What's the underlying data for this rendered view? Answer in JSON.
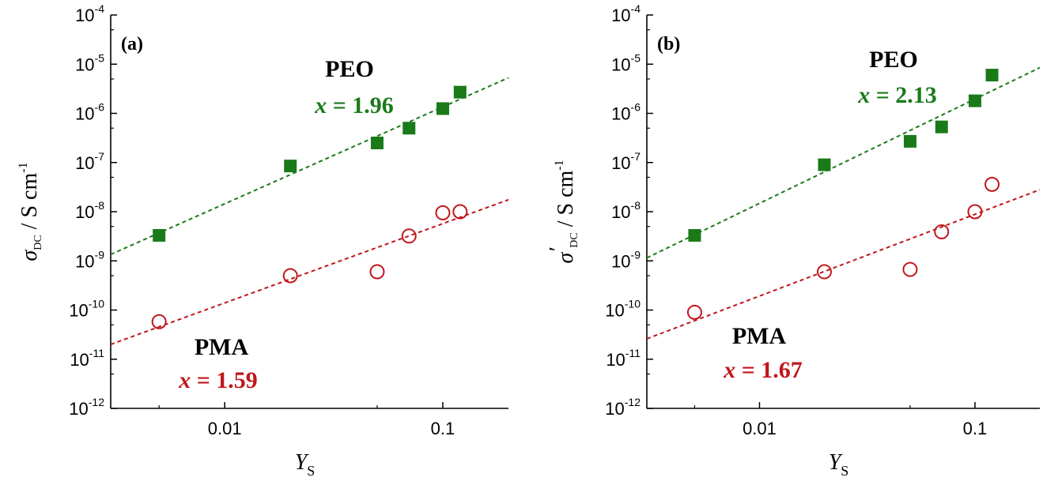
{
  "chart_data": [
    {
      "type": "scatter",
      "panel_label": "(a)",
      "ylabel_main": "σ",
      "ylabel_sub": "DC",
      "ylabel_prime": "",
      "ylabel_units": " / S cm",
      "ylabel_units_sup": "-1",
      "xlabel_main": "Y",
      "xlabel_sub": "S",
      "x_scale": "log",
      "y_scale": "log",
      "xlim": [
        0.003,
        0.2
      ],
      "ylim": [
        1e-12,
        0.0001
      ],
      "x_ticks": [
        {
          "value": 0.01,
          "label": "0.01"
        },
        {
          "value": 0.1,
          "label": "0.1"
        }
      ],
      "y_ticks": [
        {
          "exp": -4,
          "base": "10",
          "sup": "-4"
        },
        {
          "exp": -5,
          "base": "10",
          "sup": "-5"
        },
        {
          "exp": -6,
          "base": "10",
          "sup": "-6"
        },
        {
          "exp": -7,
          "base": "10",
          "sup": "-7"
        },
        {
          "exp": -8,
          "base": "10",
          "sup": "-8"
        },
        {
          "exp": -9,
          "base": "10",
          "sup": "-9"
        },
        {
          "exp": -10,
          "base": "10",
          "sup": "-10"
        },
        {
          "exp": -11,
          "base": "10",
          "sup": "-11"
        },
        {
          "exp": -12,
          "base": "10",
          "sup": "-12"
        }
      ],
      "series": [
        {
          "name": "PEO",
          "marker": "filled-square",
          "color": "#1a7a1a",
          "slope_label": "x = 1.96",
          "slope_var": "x",
          "slope_rest": " = 1.96",
          "x": [
            0.005,
            0.02,
            0.05,
            0.07,
            0.1,
            0.12
          ],
          "y": [
            3.3e-09,
            8.5e-08,
            2.5e-07,
            5e-07,
            1.25e-06,
            2.7e-06
          ],
          "fit": {
            "x": [
              0.003,
              0.2
            ],
            "y": [
              1.35e-09,
              5.3e-06
            ]
          }
        },
        {
          "name": "PMA",
          "marker": "open-circle",
          "color": "#c0161b",
          "slope_label": "x = 1.59",
          "slope_var": "x",
          "slope_rest": " = 1.59",
          "x": [
            0.005,
            0.02,
            0.05,
            0.07,
            0.1,
            0.12
          ],
          "y": [
            5.8e-11,
            5e-10,
            6e-10,
            3.2e-09,
            9.5e-09,
            1e-08
          ],
          "fit": {
            "x": [
              0.003,
              0.2
            ],
            "y": [
              2e-11,
              1.75e-08
            ]
          }
        }
      ]
    },
    {
      "type": "scatter",
      "panel_label": "(b)",
      "ylabel_main": "σ",
      "ylabel_sub": "DC",
      "ylabel_prime": "′",
      "ylabel_units": " / S cm",
      "ylabel_units_sup": "-1",
      "xlabel_main": "Y",
      "xlabel_sub": "S",
      "x_scale": "log",
      "y_scale": "log",
      "xlim": [
        0.003,
        0.2
      ],
      "ylim": [
        1e-12,
        0.0001
      ],
      "x_ticks": [
        {
          "value": 0.01,
          "label": "0.01"
        },
        {
          "value": 0.1,
          "label": "0.1"
        }
      ],
      "y_ticks": [
        {
          "exp": -4,
          "base": "10",
          "sup": "-4"
        },
        {
          "exp": -5,
          "base": "10",
          "sup": "-5"
        },
        {
          "exp": -6,
          "base": "10",
          "sup": "-6"
        },
        {
          "exp": -7,
          "base": "10",
          "sup": "-7"
        },
        {
          "exp": -8,
          "base": "10",
          "sup": "-8"
        },
        {
          "exp": -9,
          "base": "10",
          "sup": "-9"
        },
        {
          "exp": -10,
          "base": "10",
          "sup": "-10"
        },
        {
          "exp": -11,
          "base": "10",
          "sup": "-11"
        },
        {
          "exp": -12,
          "base": "10",
          "sup": "-12"
        }
      ],
      "series": [
        {
          "name": "PEO",
          "marker": "filled-square",
          "color": "#1a7a1a",
          "slope_label": "x = 2.13",
          "slope_var": "x",
          "slope_rest": " = 2.13",
          "x": [
            0.005,
            0.02,
            0.05,
            0.07,
            0.1,
            0.12
          ],
          "y": [
            3.3e-09,
            9e-08,
            2.7e-07,
            5.3e-07,
            1.8e-06,
            6e-06
          ],
          "fit": {
            "x": [
              0.003,
              0.2
            ],
            "y": [
              1.15e-09,
              8.5e-06
            ]
          }
        },
        {
          "name": "PMA",
          "marker": "open-circle",
          "color": "#c0161b",
          "slope_label": "x = 1.67",
          "slope_var": "x",
          "slope_rest": " = 1.67",
          "x": [
            0.005,
            0.02,
            0.05,
            0.07,
            0.1,
            0.12
          ],
          "y": [
            9e-11,
            6e-10,
            6.7e-10,
            3.9e-09,
            1e-08,
            3.6e-08
          ],
          "fit": {
            "x": [
              0.003,
              0.2
            ],
            "y": [
              2.6e-11,
              2.8e-08
            ]
          }
        }
      ]
    }
  ]
}
